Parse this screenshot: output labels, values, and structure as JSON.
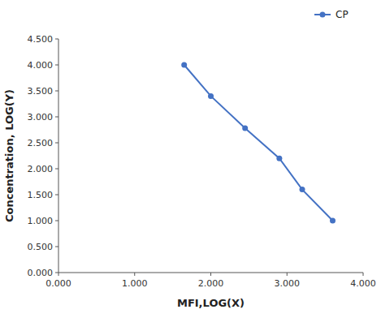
{
  "chart_data": {
    "type": "line",
    "x": [
      1.65,
      2.0,
      2.45,
      2.9,
      3.2,
      3.6
    ],
    "series": [
      {
        "name": "CP",
        "color": "#4472C4",
        "marker": "circle",
        "values": [
          4.0,
          3.4,
          2.78,
          2.2,
          1.6,
          1.0
        ]
      }
    ],
    "xlabel": "MFI,LOG(X)",
    "ylabel": "Concentration, LOG(Y)",
    "xlim": [
      0.0,
      4.0
    ],
    "ylim": [
      0.0,
      4.5
    ],
    "xticks": [
      {
        "value": 0.0,
        "label": "0.000"
      },
      {
        "value": 1.0,
        "label": "1.000"
      },
      {
        "value": 2.0,
        "label": "2.000"
      },
      {
        "value": 3.0,
        "label": "3.000"
      },
      {
        "value": 4.0,
        "label": "4.000"
      }
    ],
    "yticks": [
      {
        "value": 0.0,
        "label": "0.000"
      },
      {
        "value": 0.5,
        "label": "0.500"
      },
      {
        "value": 1.0,
        "label": "1.000"
      },
      {
        "value": 1.5,
        "label": "1.500"
      },
      {
        "value": 2.0,
        "label": "2.000"
      },
      {
        "value": 2.5,
        "label": "2.500"
      },
      {
        "value": 3.0,
        "label": "3.000"
      },
      {
        "value": 3.5,
        "label": "3.500"
      },
      {
        "value": 4.0,
        "label": "4.000"
      },
      {
        "value": 4.5,
        "label": "4.500"
      }
    ],
    "legend": "upper right",
    "grid": false
  }
}
